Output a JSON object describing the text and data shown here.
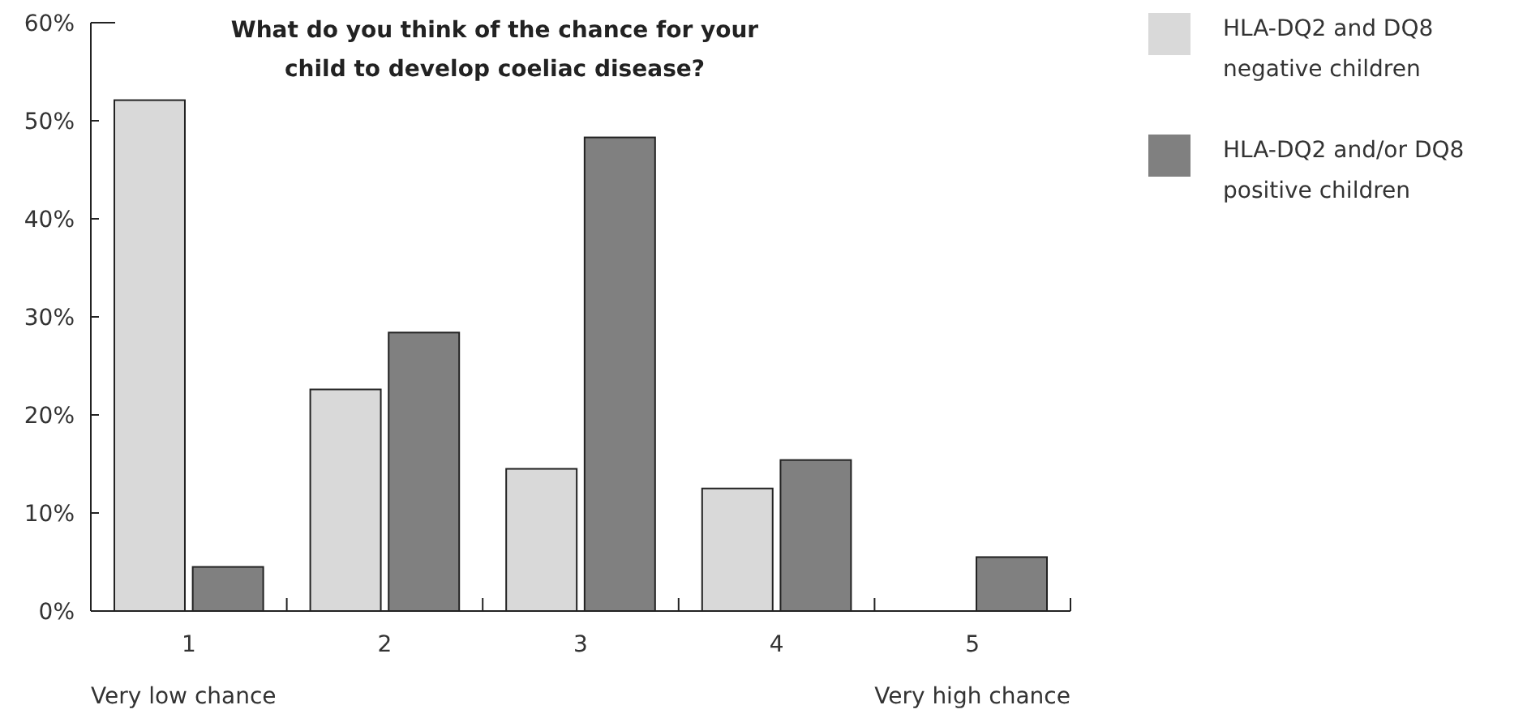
{
  "chart_data": {
    "type": "bar",
    "title": "What do you think of the chance for your child to develop coeliac disease?",
    "categories": [
      "1",
      "2",
      "3",
      "4",
      "5"
    ],
    "series": [
      {
        "name": "HLA-DQ2 and DQ8 negative children",
        "color": "#d9d9d9",
        "values": [
          52.1,
          22.6,
          14.5,
          12.5,
          0
        ]
      },
      {
        "name": "HLA-DQ2 and/or DQ8 positive children",
        "color": "#808080",
        "values": [
          4.5,
          28.4,
          48.3,
          15.4,
          5.5
        ]
      }
    ],
    "ylim": [
      0,
      60
    ],
    "yticks": [
      {
        "value": 0,
        "label": "0%"
      },
      {
        "value": 10,
        "label": "10%"
      },
      {
        "value": 20,
        "label": "20%"
      },
      {
        "value": 30,
        "label": "30%"
      },
      {
        "value": 40,
        "label": "40%"
      },
      {
        "value": 50,
        "label": "50%"
      },
      {
        "value": 60,
        "label": "60%"
      }
    ],
    "annotations": [
      "Very low chance",
      "Very high chance"
    ],
    "grid": false,
    "legend": "top right"
  }
}
